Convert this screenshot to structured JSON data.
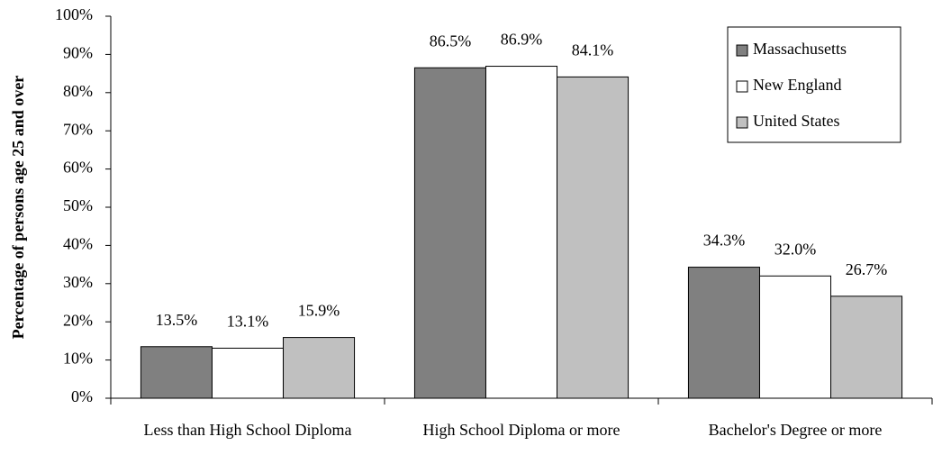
{
  "chart_data": {
    "type": "bar",
    "y_axis_label": "Percentage of persons age 25 and over",
    "categories": [
      "Less than High School Diploma",
      "High School Diploma or more",
      "Bachelor's Degree or more"
    ],
    "series": [
      {
        "name": "Massachusetts",
        "color": "#808080",
        "values": [
          13.5,
          86.5,
          34.3
        ],
        "value_labels": [
          "13.5%",
          "86.5%",
          "34.3%"
        ]
      },
      {
        "name": "New England",
        "color": "#ffffff",
        "values": [
          13.1,
          86.9,
          32.0
        ],
        "value_labels": [
          "13.1%",
          "86.9%",
          "32.0%"
        ]
      },
      {
        "name": "United States",
        "color": "#c0c0c0",
        "values": [
          15.9,
          84.1,
          26.7
        ],
        "value_labels": [
          "15.9%",
          "84.1%",
          "26.7%"
        ]
      }
    ],
    "ylim": [
      0,
      100
    ],
    "yticks": [
      {
        "value": 0,
        "label": "0%"
      },
      {
        "value": 10,
        "label": "10%"
      },
      {
        "value": 20,
        "label": "20%"
      },
      {
        "value": 30,
        "label": "30%"
      },
      {
        "value": 40,
        "label": "40%"
      },
      {
        "value": 50,
        "label": "50%"
      },
      {
        "value": 60,
        "label": "60%"
      },
      {
        "value": 70,
        "label": "70%"
      },
      {
        "value": 80,
        "label": "80%"
      },
      {
        "value": 90,
        "label": "90%"
      },
      {
        "value": 100,
        "label": "100%"
      }
    ],
    "grid": false,
    "legend": "upper right"
  }
}
